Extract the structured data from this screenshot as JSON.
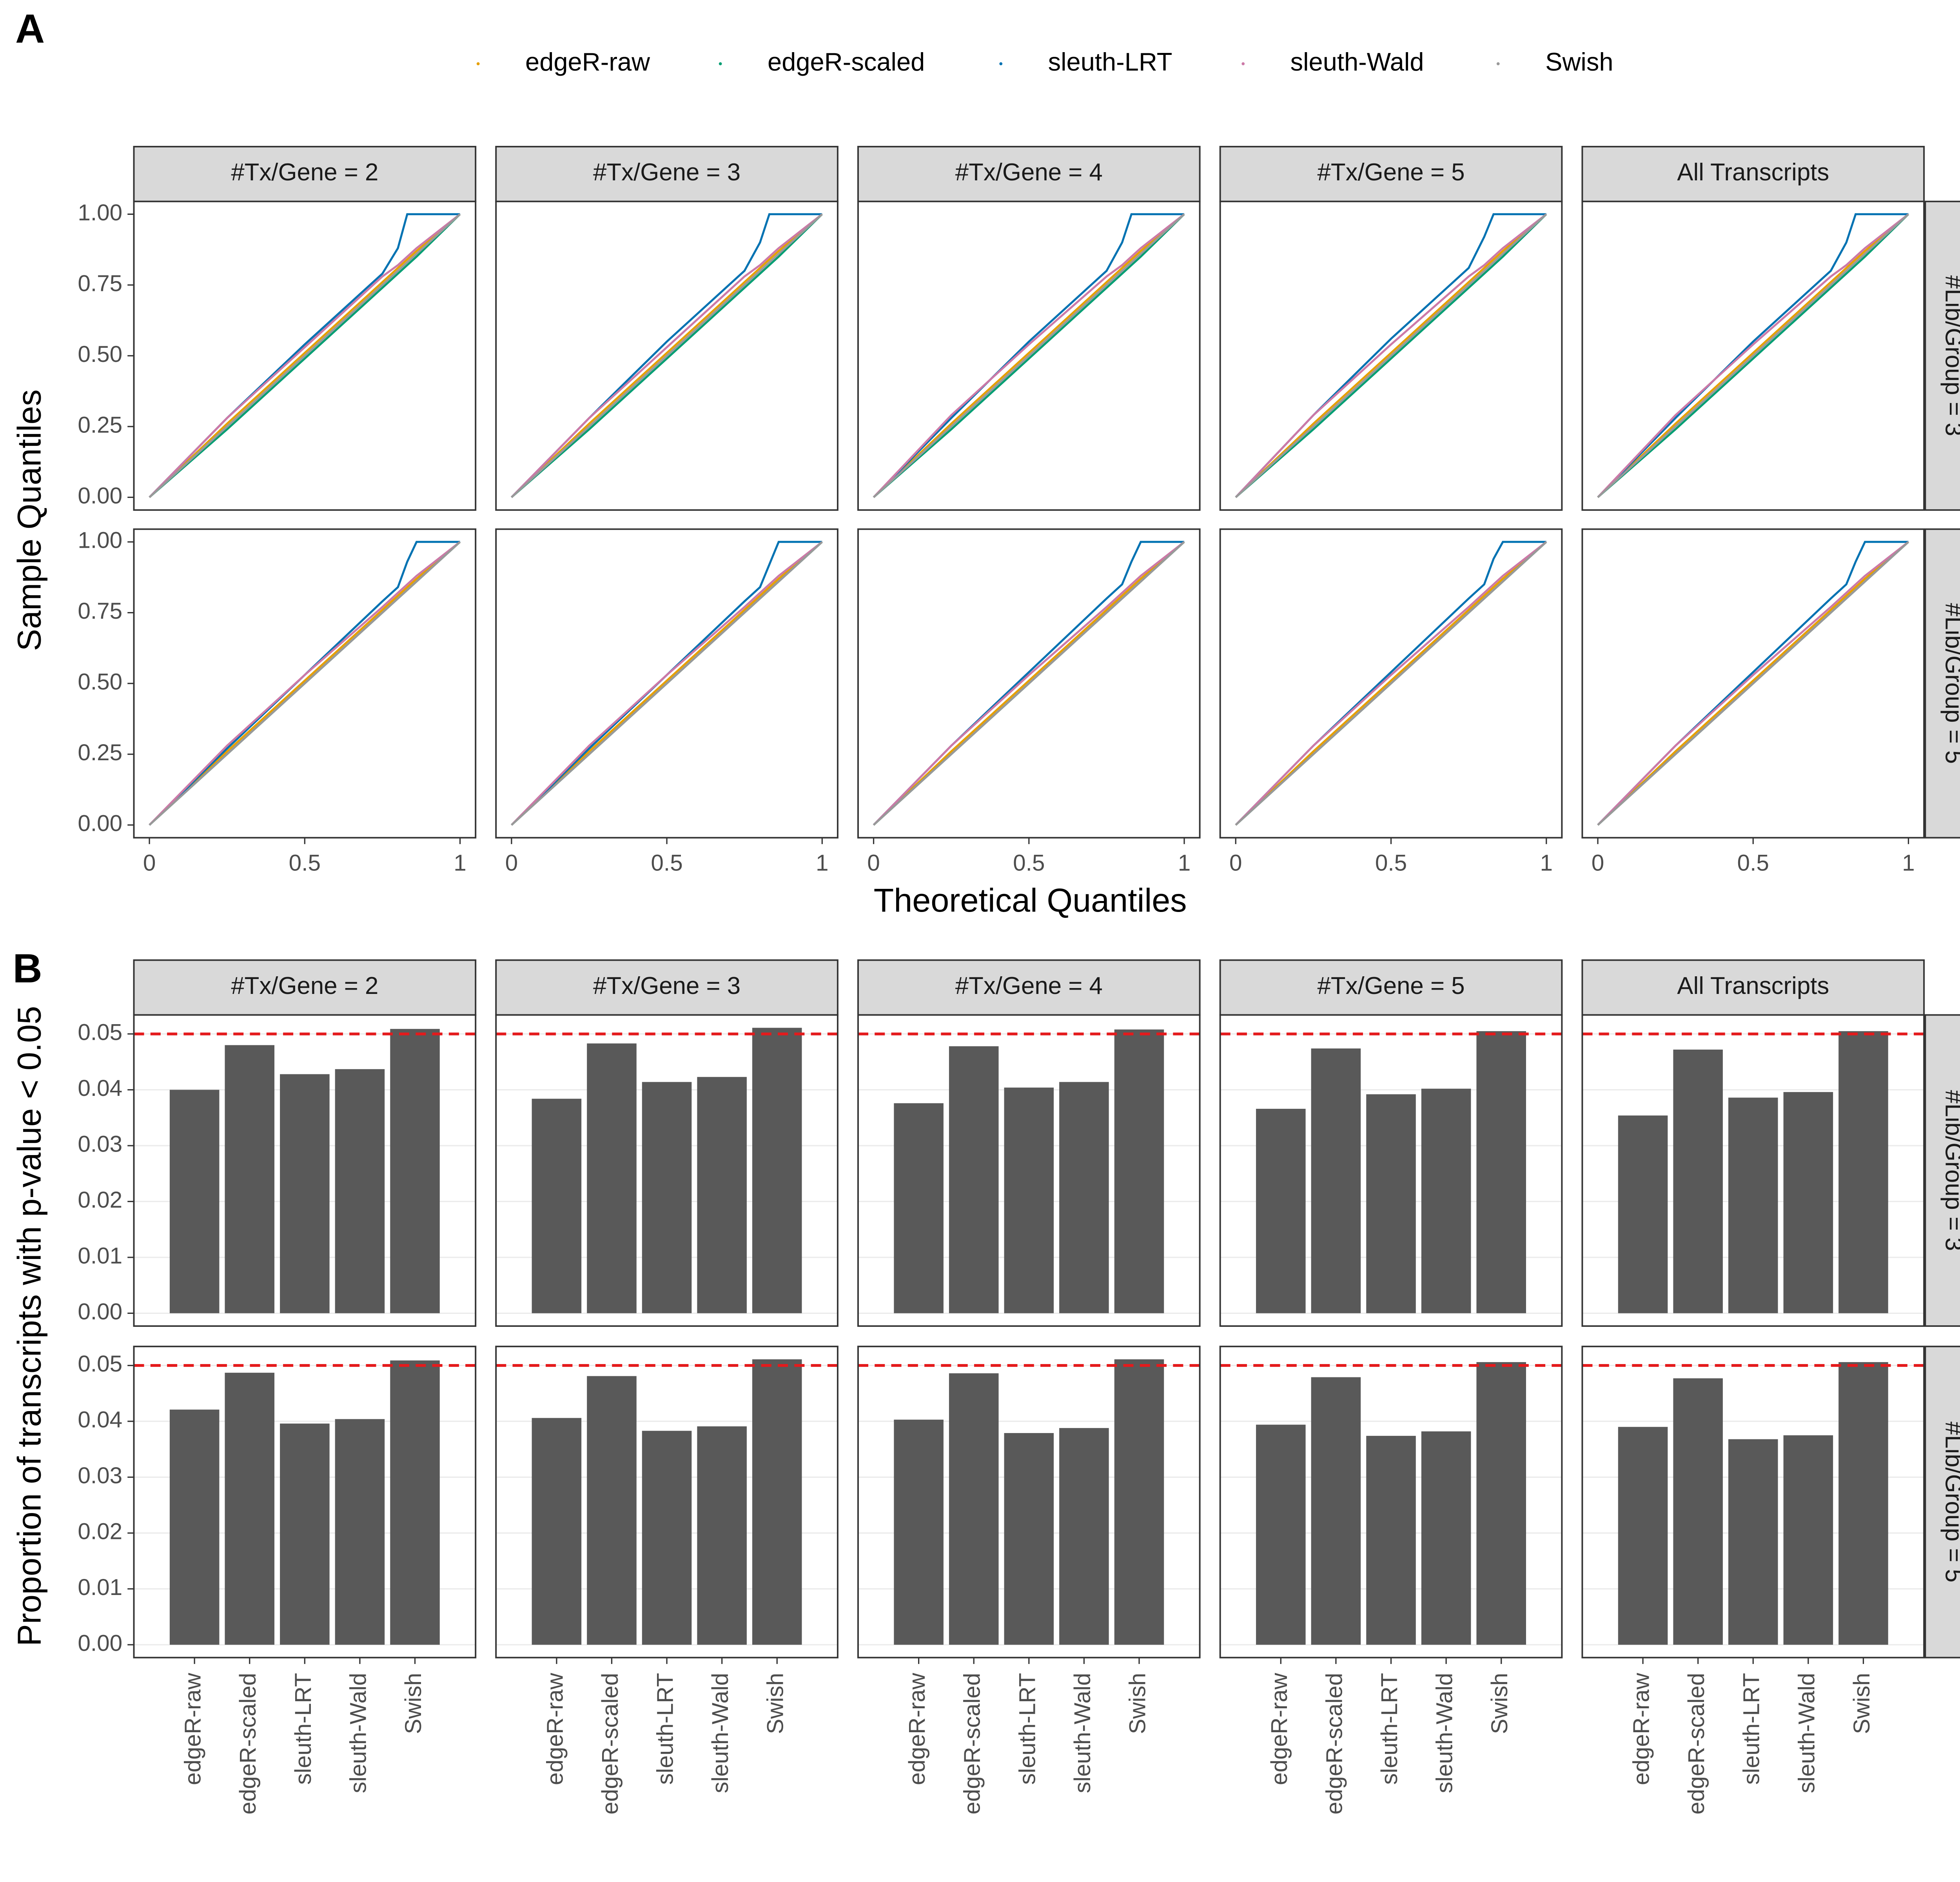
{
  "chart_data": [
    {
      "type": "line",
      "panel_label": "A",
      "xlabel": "Theoretical Quantiles",
      "ylabel": "Sample Quantiles",
      "col_facets": [
        "#Tx/Gene = 2",
        "#Tx/Gene = 3",
        "#Tx/Gene = 4",
        "#Tx/Gene = 5",
        "All Transcripts"
      ],
      "row_facets": [
        "#Lib/Group = 3",
        "#Lib/Group = 5"
      ],
      "series": [
        {
          "name": "edgeR-raw",
          "color": "#E69F00"
        },
        {
          "name": "edgeR-scaled",
          "color": "#009E73"
        },
        {
          "name": "sleuth-LRT",
          "color": "#0072B2"
        },
        {
          "name": "sleuth-Wald",
          "color": "#CC79A7"
        },
        {
          "name": "Swish",
          "color": "#999999"
        }
      ],
      "xlim": [
        -0.05,
        1.05
      ],
      "xticks": [
        0,
        0.5,
        1
      ],
      "ylim": [
        -0.045,
        1.045
      ],
      "yticks": [
        {
          "value": 0,
          "label": "0.00"
        },
        {
          "value": 0.25,
          "label": "0.25"
        },
        {
          "value": 0.5,
          "label": "0.50"
        },
        {
          "value": 0.75,
          "label": "0.75"
        },
        {
          "value": 1,
          "label": "1.00"
        }
      ],
      "grid": false,
      "x": [
        0,
        0.25,
        0.5,
        0.75,
        0.8,
        0.83,
        0.86,
        1
      ],
      "panels": [
        {
          "values": [
            [
              0,
              0.26,
              0.51,
              0.76,
              0.81,
              0.84,
              0.87,
              1
            ],
            [
              0,
              0.24,
              0.49,
              0.74,
              0.79,
              0.82,
              0.85,
              1
            ],
            [
              0,
              0.28,
              0.54,
              0.79,
              0.88,
              1,
              1,
              1
            ],
            [
              0,
              0.28,
              0.53,
              0.78,
              0.82,
              0.85,
              0.88,
              1
            ],
            [
              0,
              0.25,
              0.5,
              0.75,
              0.8,
              0.83,
              0.86,
              1
            ]
          ]
        },
        {
          "values": [
            [
              0,
              0.26,
              0.51,
              0.76,
              0.81,
              0.84,
              0.87,
              1
            ],
            [
              0,
              0.24,
              0.49,
              0.74,
              0.79,
              0.82,
              0.85,
              1
            ],
            [
              0,
              0.28,
              0.55,
              0.8,
              0.9,
              1,
              1,
              1
            ],
            [
              0,
              0.28,
              0.53,
              0.78,
              0.82,
              0.85,
              0.88,
              1
            ],
            [
              0,
              0.25,
              0.5,
              0.75,
              0.8,
              0.83,
              0.86,
              1
            ]
          ]
        },
        {
          "values": [
            [
              0,
              0.26,
              0.51,
              0.76,
              0.81,
              0.84,
              0.87,
              1
            ],
            [
              0,
              0.24,
              0.49,
              0.74,
              0.79,
              0.82,
              0.85,
              1
            ],
            [
              0,
              0.28,
              0.55,
              0.8,
              0.9,
              1,
              1,
              1
            ],
            [
              0,
              0.29,
              0.54,
              0.78,
              0.82,
              0.85,
              0.88,
              1
            ],
            [
              0,
              0.25,
              0.5,
              0.75,
              0.8,
              0.83,
              0.86,
              1
            ]
          ]
        },
        {
          "values": [
            [
              0,
              0.26,
              0.51,
              0.76,
              0.81,
              0.84,
              0.87,
              1
            ],
            [
              0,
              0.24,
              0.49,
              0.74,
              0.79,
              0.82,
              0.85,
              1
            ],
            [
              0,
              0.29,
              0.56,
              0.81,
              0.92,
              1,
              1,
              1
            ],
            [
              0,
              0.29,
              0.54,
              0.78,
              0.82,
              0.85,
              0.88,
              1
            ],
            [
              0,
              0.25,
              0.5,
              0.75,
              0.8,
              0.83,
              0.86,
              1
            ]
          ]
        },
        {
          "values": [
            [
              0,
              0.26,
              0.51,
              0.76,
              0.81,
              0.84,
              0.87,
              1
            ],
            [
              0,
              0.24,
              0.49,
              0.74,
              0.79,
              0.82,
              0.85,
              1
            ],
            [
              0,
              0.28,
              0.55,
              0.8,
              0.9,
              1,
              1,
              1
            ],
            [
              0,
              0.29,
              0.54,
              0.78,
              0.82,
              0.85,
              0.88,
              1
            ],
            [
              0,
              0.25,
              0.5,
              0.75,
              0.8,
              0.83,
              0.86,
              1
            ]
          ]
        },
        {
          "values": [
            [
              0,
              0.26,
              0.51,
              0.76,
              0.81,
              0.84,
              0.87,
              1
            ],
            [
              0,
              0.25,
              0.5,
              0.75,
              0.8,
              0.83,
              0.86,
              1
            ],
            [
              0,
              0.27,
              0.53,
              0.79,
              0.84,
              0.93,
              1,
              1
            ],
            [
              0,
              0.28,
              0.53,
              0.77,
              0.82,
              0.85,
              0.88,
              1
            ],
            [
              0,
              0.25,
              0.5,
              0.75,
              0.8,
              0.83,
              0.86,
              1
            ]
          ]
        },
        {
          "values": [
            [
              0,
              0.26,
              0.51,
              0.76,
              0.81,
              0.84,
              0.87,
              1
            ],
            [
              0,
              0.25,
              0.5,
              0.75,
              0.8,
              0.83,
              0.86,
              1
            ],
            [
              0,
              0.27,
              0.53,
              0.79,
              0.84,
              0.92,
              1,
              1
            ],
            [
              0,
              0.28,
              0.53,
              0.77,
              0.82,
              0.85,
              0.88,
              1
            ],
            [
              0,
              0.25,
              0.5,
              0.75,
              0.8,
              0.83,
              0.86,
              1
            ]
          ]
        },
        {
          "values": [
            [
              0,
              0.26,
              0.51,
              0.76,
              0.81,
              0.84,
              0.87,
              1
            ],
            [
              0,
              0.25,
              0.5,
              0.75,
              0.8,
              0.83,
              0.86,
              1
            ],
            [
              0,
              0.28,
              0.54,
              0.8,
              0.85,
              0.93,
              1,
              1
            ],
            [
              0,
              0.28,
              0.53,
              0.77,
              0.82,
              0.85,
              0.88,
              1
            ],
            [
              0,
              0.25,
              0.5,
              0.75,
              0.8,
              0.83,
              0.86,
              1
            ]
          ]
        },
        {
          "values": [
            [
              0,
              0.26,
              0.51,
              0.76,
              0.81,
              0.84,
              0.87,
              1
            ],
            [
              0,
              0.25,
              0.5,
              0.75,
              0.8,
              0.83,
              0.86,
              1
            ],
            [
              0,
              0.28,
              0.54,
              0.8,
              0.85,
              0.94,
              1,
              1
            ],
            [
              0,
              0.28,
              0.53,
              0.77,
              0.82,
              0.85,
              0.88,
              1
            ],
            [
              0,
              0.25,
              0.5,
              0.75,
              0.8,
              0.83,
              0.86,
              1
            ]
          ]
        },
        {
          "values": [
            [
              0,
              0.26,
              0.51,
              0.76,
              0.81,
              0.84,
              0.87,
              1
            ],
            [
              0,
              0.25,
              0.5,
              0.75,
              0.8,
              0.83,
              0.86,
              1
            ],
            [
              0,
              0.28,
              0.54,
              0.8,
              0.85,
              0.93,
              1,
              1
            ],
            [
              0,
              0.28,
              0.53,
              0.77,
              0.82,
              0.85,
              0.88,
              1
            ],
            [
              0,
              0.25,
              0.5,
              0.75,
              0.8,
              0.83,
              0.86,
              1
            ]
          ]
        }
      ]
    },
    {
      "type": "bar",
      "panel_label": "B",
      "ylabel": "Proportion of transcripts with p-value < 0.05",
      "col_facets": [
        "#Tx/Gene = 2",
        "#Tx/Gene = 3",
        "#Tx/Gene = 4",
        "#Tx/Gene = 5",
        "All Transcripts"
      ],
      "row_facets": [
        "#Lib/Group = 3",
        "#Lib/Group = 5"
      ],
      "categories": [
        "edgeR-raw",
        "edgeR-scaled",
        "sleuth-LRT",
        "sleuth-Wald",
        "Swish"
      ],
      "color": "#595959",
      "reference_line": 0.05,
      "reference_color": "#e41a1c",
      "ylim": [
        -0.0023,
        0.0534
      ],
      "yticks": [
        {
          "value": 0,
          "label": "0.00"
        },
        {
          "value": 0.01,
          "label": "0.01"
        },
        {
          "value": 0.02,
          "label": "0.02"
        },
        {
          "value": 0.03,
          "label": "0.03"
        },
        {
          "value": 0.04,
          "label": "0.04"
        },
        {
          "value": 0.05,
          "label": "0.05"
        }
      ],
      "grid": true,
      "panels": [
        {
          "values": [
            0.04,
            0.048,
            0.0428,
            0.0437,
            0.0509
          ]
        },
        {
          "values": [
            0.0384,
            0.0483,
            0.0414,
            0.0423,
            0.0511
          ]
        },
        {
          "values": [
            0.0376,
            0.0478,
            0.0404,
            0.0414,
            0.0508
          ]
        },
        {
          "values": [
            0.0366,
            0.0474,
            0.0392,
            0.0402,
            0.0505
          ]
        },
        {
          "values": [
            0.0354,
            0.0472,
            0.0386,
            0.0396,
            0.0505
          ]
        },
        {
          "values": [
            0.0421,
            0.0487,
            0.0396,
            0.0404,
            0.0509
          ]
        },
        {
          "values": [
            0.0406,
            0.0481,
            0.0383,
            0.0391,
            0.0511
          ]
        },
        {
          "values": [
            0.0403,
            0.0486,
            0.0379,
            0.0388,
            0.0511
          ]
        },
        {
          "values": [
            0.0394,
            0.0479,
            0.0374,
            0.0382,
            0.0506
          ]
        },
        {
          "values": [
            0.039,
            0.0477,
            0.0368,
            0.0375,
            0.0506
          ]
        }
      ]
    }
  ]
}
